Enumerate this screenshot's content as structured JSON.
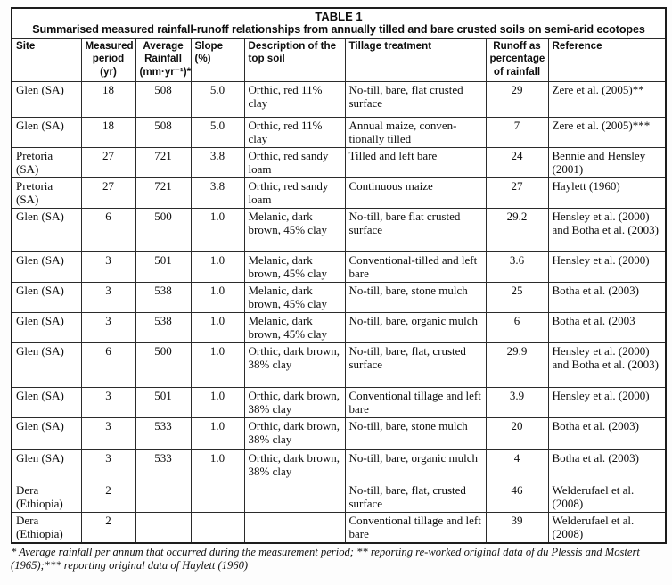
{
  "table": {
    "title_line1": "TABLE 1",
    "title_line2": "Summarised measured rainfall-runoff relationships from annually tilled and bare crusted soils on semi-arid ecotopes",
    "columns": [
      {
        "key": "site",
        "label": "Site"
      },
      {
        "key": "period",
        "label": "Measured period (yr)"
      },
      {
        "key": "rainfall",
        "label": "Average Rainfall (mm·yr⁻¹)*"
      },
      {
        "key": "slope",
        "label": "Slope (%)"
      },
      {
        "key": "description",
        "label": "Description of the top soil"
      },
      {
        "key": "tillage",
        "label": "Tillage treatment"
      },
      {
        "key": "runoff",
        "label": "Runoff as percentage of rainfall"
      },
      {
        "key": "reference",
        "label": "Reference"
      }
    ],
    "rows": [
      [
        "Glen (SA)",
        "18",
        "508",
        "5.0",
        "Orthic, red 11% clay",
        "No-till, bare, flat crusted surface",
        "29",
        "Zere et al. (2005)**"
      ],
      [
        "Glen (SA)",
        "18",
        "508",
        "5.0",
        "Orthic, red 11% clay",
        "Annual maize, conven-tionally tilled",
        "7",
        "Zere et al. (2005)***"
      ],
      [
        "Pretoria (SA)",
        "27",
        "721",
        "3.8",
        "Orthic, red sandy loam",
        "Tilled and left bare",
        "24",
        "Bennie and Hensley (2001)"
      ],
      [
        "Pretoria (SA)",
        "27",
        "721",
        "3.8",
        "Orthic, red sandy loam",
        "Continuous maize",
        "27",
        "Haylett (1960)"
      ],
      [
        "Glen (SA)",
        "6",
        "500",
        "1.0",
        "Melanic, dark brown, 45% clay",
        "No-till, bare flat crusted surface",
        "29.2",
        "Hensley et al. (2000) and Botha et al. (2003)"
      ],
      [
        "Glen (SA)",
        "3",
        "501",
        "1.0",
        "Melanic, dark brown, 45% clay",
        "Conventional-tilled and left bare",
        "3.6",
        "Hensley et al. (2000)"
      ],
      [
        "Glen (SA)",
        "3",
        "538",
        "1.0",
        "Melanic, dark brown, 45% clay",
        "No-till, bare, stone mulch",
        "25",
        "Botha et al. (2003)"
      ],
      [
        "Glen (SA)",
        "3",
        "538",
        "1.0",
        "Melanic, dark brown, 45% clay",
        "No-till, bare, organic mulch",
        "6",
        "Botha et al. (2003"
      ],
      [
        "Glen (SA)",
        "6",
        "500",
        "1.0",
        "Orthic, dark brown, 38% clay",
        "No-till, bare, flat, crusted surface",
        "29.9",
        "Hensley et al. (2000) and Botha et al. (2003)"
      ],
      [
        "Glen (SA)",
        "3",
        "501",
        "1.0",
        "Orthic, dark brown, 38% clay",
        "Conventional tillage and left bare",
        "3.9",
        "Hensley et al. (2000)"
      ],
      [
        "Glen (SA)",
        "3",
        "533",
        "1.0",
        "Orthic, dark brown, 38% clay",
        "No-till, bare, stone mulch",
        "20",
        "Botha et al. (2003)"
      ],
      [
        "Glen (SA)",
        "3",
        "533",
        "1.0",
        "Orthic, dark brown, 38% clay",
        "No-till, bare, organic mulch",
        "4",
        "Botha et al. (2003)"
      ],
      [
        "Dera (Ethiopia)",
        "2",
        "",
        "",
        "",
        "No-till, bare, flat, crusted surface",
        "46",
        "Welderufael et al. (2008)"
      ],
      [
        "Dera (Ethiopia)",
        "2",
        "",
        "",
        "",
        "Conventional tillage and left bare",
        "39",
        "Welderufael et al. (2008)"
      ]
    ],
    "footnote": "* Average rainfall per annum that occurred during the measurement period; ** reporting re-worked original data of du Plessis and Mostert (1965);*** reporting original data of Haylett (1960)"
  }
}
